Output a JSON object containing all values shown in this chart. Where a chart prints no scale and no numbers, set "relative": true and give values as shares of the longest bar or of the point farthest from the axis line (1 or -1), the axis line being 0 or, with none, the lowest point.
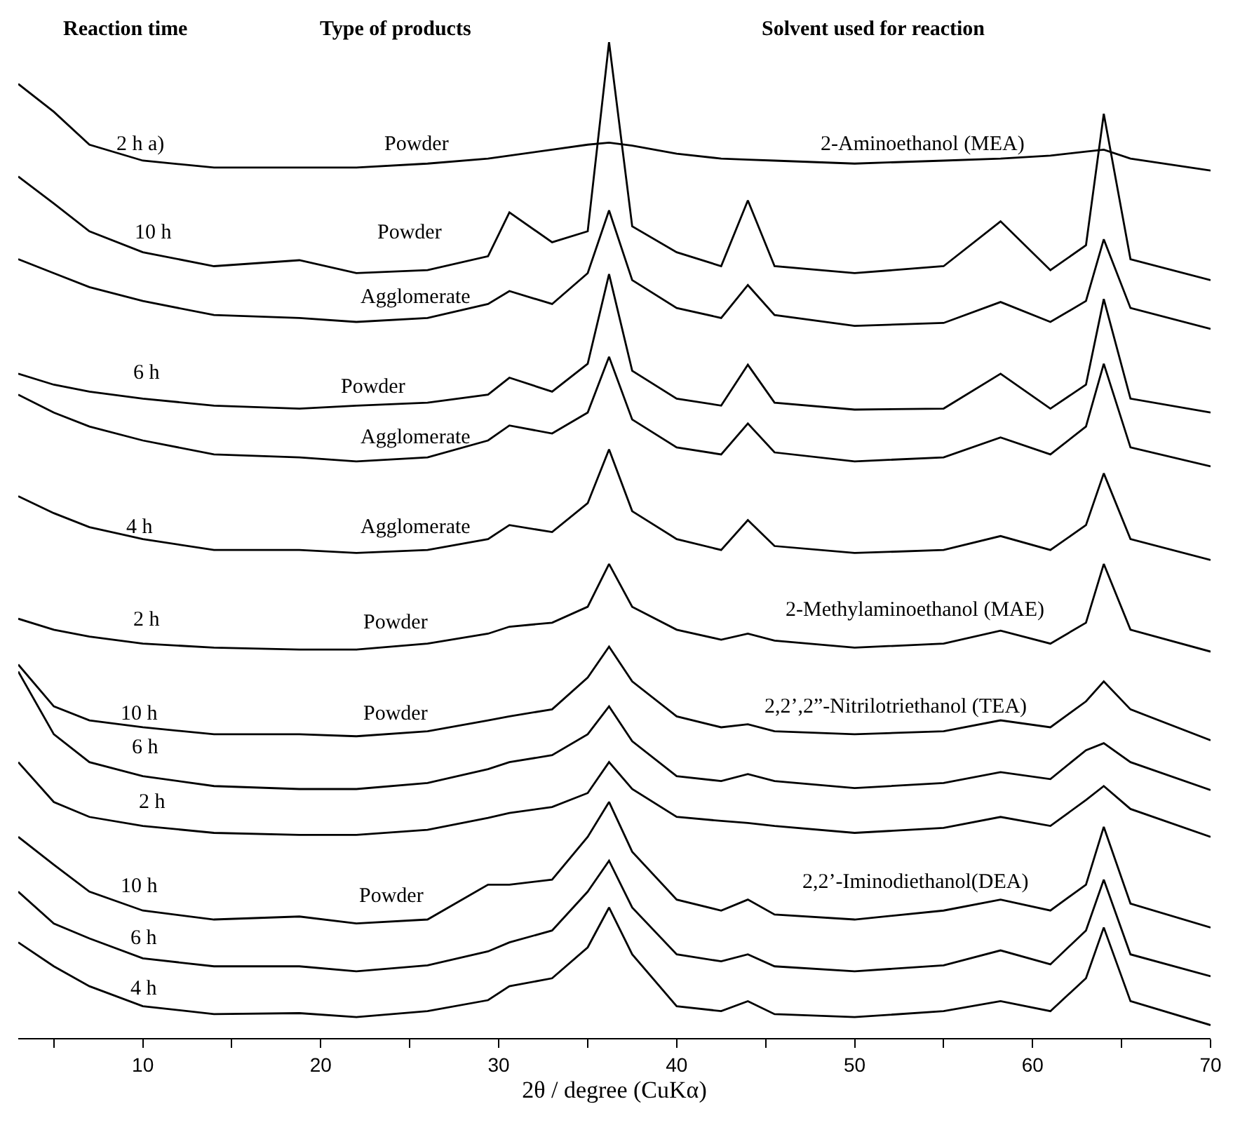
{
  "chart_data": {
    "type": "line",
    "relative": true,
    "xlabel": "2θ / degree (CuKα)",
    "x": [
      3,
      5,
      7,
      10,
      14,
      18.8,
      22,
      26,
      29.4,
      30.6,
      33,
      35,
      36.2,
      37.5,
      40,
      42.5,
      44,
      45.5,
      50,
      55,
      58.2,
      61,
      63,
      64,
      65.5,
      70
    ],
    "xlim": [
      3,
      70
    ],
    "xticks": [
      {
        "value": 5,
        "label": null
      },
      10,
      {
        "value": 15,
        "label": null
      },
      20,
      {
        "value": 25,
        "label": null
      },
      30,
      {
        "value": 35,
        "label": null
      },
      40,
      {
        "value": 45,
        "label": null
      },
      50,
      {
        "value": 55,
        "label": null
      },
      60,
      {
        "value": 65,
        "label": null
      },
      70
    ],
    "series": [
      {
        "color": "#000000",
        "values": [
          0.958,
          0.93,
          0.897,
          0.881,
          0.874,
          0.874,
          0.874,
          0.878,
          0.883,
          0.886,
          0.892,
          0.897,
          0.899,
          0.896,
          0.888,
          0.883,
          0.882,
          0.881,
          0.878,
          0.881,
          0.883,
          0.886,
          0.89,
          0.892,
          0.883,
          0.871
        ]
      },
      {
        "color": "#000000",
        "values": [
          0.865,
          0.838,
          0.81,
          0.789,
          0.775,
          0.781,
          0.768,
          0.771,
          0.785,
          0.829,
          0.799,
          0.81,
          1,
          0.815,
          0.789,
          0.775,
          0.841,
          0.775,
          0.768,
          0.775,
          0.82,
          0.771,
          0.796,
          0.928,
          0.782,
          0.761
        ]
      },
      {
        "color": "#000000",
        "values": [
          0.782,
          0.768,
          0.754,
          0.74,
          0.726,
          0.723,
          0.719,
          0.723,
          0.737,
          0.75,
          0.737,
          0.768,
          0.831,
          0.761,
          0.733,
          0.723,
          0.756,
          0.726,
          0.715,
          0.718,
          0.739,
          0.719,
          0.74,
          0.802,
          0.733,
          0.712
        ]
      },
      {
        "color": "#000000",
        "values": [
          0.667,
          0.656,
          0.649,
          0.642,
          0.635,
          0.632,
          0.635,
          0.638,
          0.646,
          0.663,
          0.649,
          0.677,
          0.767,
          0.67,
          0.642,
          0.635,
          0.676,
          0.638,
          0.631,
          0.632,
          0.667,
          0.632,
          0.656,
          0.742,
          0.642,
          0.628
        ]
      },
      {
        "color": "#000000",
        "values": [
          0.646,
          0.628,
          0.614,
          0.6,
          0.586,
          0.583,
          0.579,
          0.583,
          0.6,
          0.615,
          0.607,
          0.628,
          0.684,
          0.621,
          0.593,
          0.586,
          0.617,
          0.588,
          0.579,
          0.583,
          0.603,
          0.586,
          0.614,
          0.677,
          0.593,
          0.574
        ]
      },
      {
        "color": "#000000",
        "values": [
          0.544,
          0.527,
          0.513,
          0.501,
          0.49,
          0.49,
          0.487,
          0.49,
          0.501,
          0.515,
          0.508,
          0.537,
          0.591,
          0.529,
          0.501,
          0.49,
          0.52,
          0.494,
          0.487,
          0.49,
          0.504,
          0.49,
          0.515,
          0.567,
          0.501,
          0.48
        ]
      },
      {
        "color": "#000000",
        "values": [
          0.421,
          0.41,
          0.403,
          0.396,
          0.392,
          0.39,
          0.39,
          0.396,
          0.406,
          0.413,
          0.417,
          0.433,
          0.476,
          0.433,
          0.41,
          0.4,
          0.406,
          0.399,
          0.392,
          0.396,
          0.409,
          0.396,
          0.417,
          0.476,
          0.41,
          0.388
        ]
      },
      {
        "color": "#000000",
        "values": [
          0.375,
          0.333,
          0.319,
          0.312,
          0.305,
          0.305,
          0.303,
          0.308,
          0.319,
          0.323,
          0.33,
          0.362,
          0.393,
          0.358,
          0.323,
          0.312,
          0.315,
          0.308,
          0.305,
          0.308,
          0.319,
          0.312,
          0.338,
          0.358,
          0.33,
          0.299
        ]
      },
      {
        "color": "#000000",
        "values": [
          0.368,
          0.305,
          0.277,
          0.263,
          0.253,
          0.25,
          0.25,
          0.256,
          0.27,
          0.277,
          0.284,
          0.305,
          0.333,
          0.298,
          0.263,
          0.258,
          0.265,
          0.258,
          0.251,
          0.256,
          0.267,
          0.26,
          0.289,
          0.296,
          0.277,
          0.249
        ]
      },
      {
        "color": "#000000",
        "values": [
          0.277,
          0.237,
          0.222,
          0.213,
          0.206,
          0.204,
          0.204,
          0.209,
          0.221,
          0.226,
          0.232,
          0.246,
          0.277,
          0.25,
          0.222,
          0.218,
          0.216,
          0.213,
          0.206,
          0.211,
          0.222,
          0.213,
          0.239,
          0.253,
          0.23,
          0.202
        ]
      },
      {
        "color": "#000000",
        "values": [
          0.202,
          0.174,
          0.147,
          0.128,
          0.119,
          0.122,
          0.115,
          0.119,
          0.154,
          0.154,
          0.159,
          0.202,
          0.237,
          0.187,
          0.139,
          0.128,
          0.139,
          0.124,
          0.119,
          0.128,
          0.139,
          0.128,
          0.154,
          0.212,
          0.135,
          0.111
        ]
      },
      {
        "color": "#000000",
        "values": [
          0.147,
          0.115,
          0.1,
          0.08,
          0.072,
          0.072,
          0.067,
          0.073,
          0.087,
          0.096,
          0.108,
          0.147,
          0.178,
          0.131,
          0.084,
          0.077,
          0.084,
          0.072,
          0.067,
          0.073,
          0.088,
          0.074,
          0.108,
          0.159,
          0.084,
          0.062
        ]
      },
      {
        "color": "#000000",
        "values": [
          0.096,
          0.072,
          0.052,
          0.032,
          0.024,
          0.025,
          0.021,
          0.027,
          0.038,
          0.052,
          0.06,
          0.091,
          0.131,
          0.084,
          0.032,
          0.027,
          0.037,
          0.024,
          0.021,
          0.027,
          0.037,
          0.027,
          0.06,
          0.111,
          0.037,
          0.013
        ]
      }
    ],
    "annotations": [
      "Reaction time",
      "Type of products",
      "Solvent used for reaction",
      "2 h a)",
      "Powder",
      "2-Aminoethanol (MEA)",
      "10 h",
      "Powder",
      "Agglomerate",
      "6 h",
      "Powder",
      "Agglomerate",
      "4 h",
      "Agglomerate",
      "2 h",
      "Powder",
      "2-Methylaminoethanol (MAE)",
      "10 h",
      "Powder",
      "2,2’,2”-Nitrilotriethanol (TEA)",
      "6 h",
      "2 h",
      "10 h",
      "Powder",
      "2,2’-Iminodiethanol(DEA)",
      "6 h",
      "4 h"
    ]
  }
}
